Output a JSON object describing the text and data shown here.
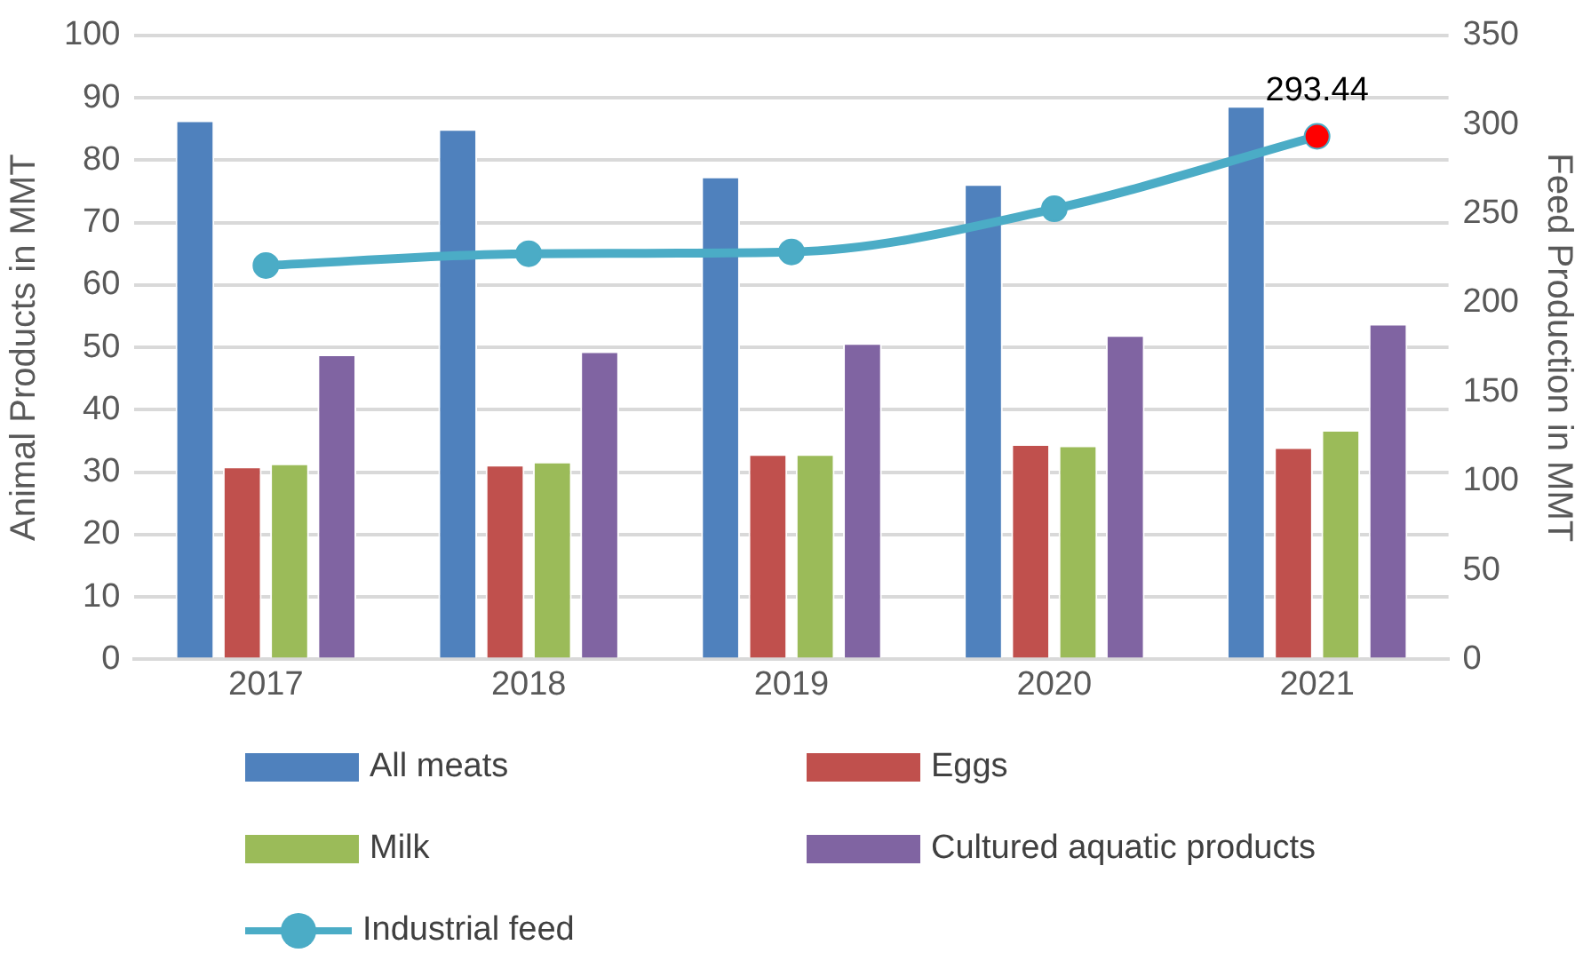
{
  "chart_data": {
    "type": "bar",
    "ylabel": "Animal Products in MMT",
    "y2label": "Feed Production in MMT",
    "categories": [
      "2017",
      "2018",
      "2019",
      "2020",
      "2021"
    ],
    "series": [
      {
        "name": "All meats",
        "color": "#4f81bd",
        "values": [
          86.4,
          85.0,
          77.4,
          76.2,
          88.7
        ]
      },
      {
        "name": "Eggs",
        "color": "#c0504d",
        "values": [
          30.9,
          31.2,
          32.9,
          34.5,
          34.0
        ]
      },
      {
        "name": "Milk",
        "color": "#9bbb59",
        "values": [
          31.4,
          31.7,
          32.9,
          34.3,
          36.8
        ]
      },
      {
        "name": "Cultured aquatic products",
        "color": "#8064a2",
        "values": [
          48.9,
          49.4,
          50.7,
          52.0,
          53.8
        ]
      },
      {
        "name": "Industrial feed",
        "type": "line",
        "axis": "y2",
        "color": "#4bacc6",
        "colors": [
          "#4bacc6",
          "#4bacc6",
          "#4bacc6",
          "#4bacc6",
          "#ff0000"
        ],
        "values": [
          221.0,
          227.6,
          228.6,
          252.8,
          293.44
        ],
        "value_labels": [
          null,
          null,
          null,
          null,
          "293.44"
        ]
      }
    ],
    "ylim": [
      0,
      100
    ],
    "yticks": [
      0,
      10,
      20,
      30,
      40,
      50,
      60,
      70,
      80,
      90,
      100
    ],
    "y2lim": [
      0,
      350
    ],
    "y2ticks": [
      0,
      50,
      100,
      150,
      200,
      250,
      300,
      350
    ],
    "grid": "y",
    "legend": "bottom",
    "marker": "circle"
  }
}
